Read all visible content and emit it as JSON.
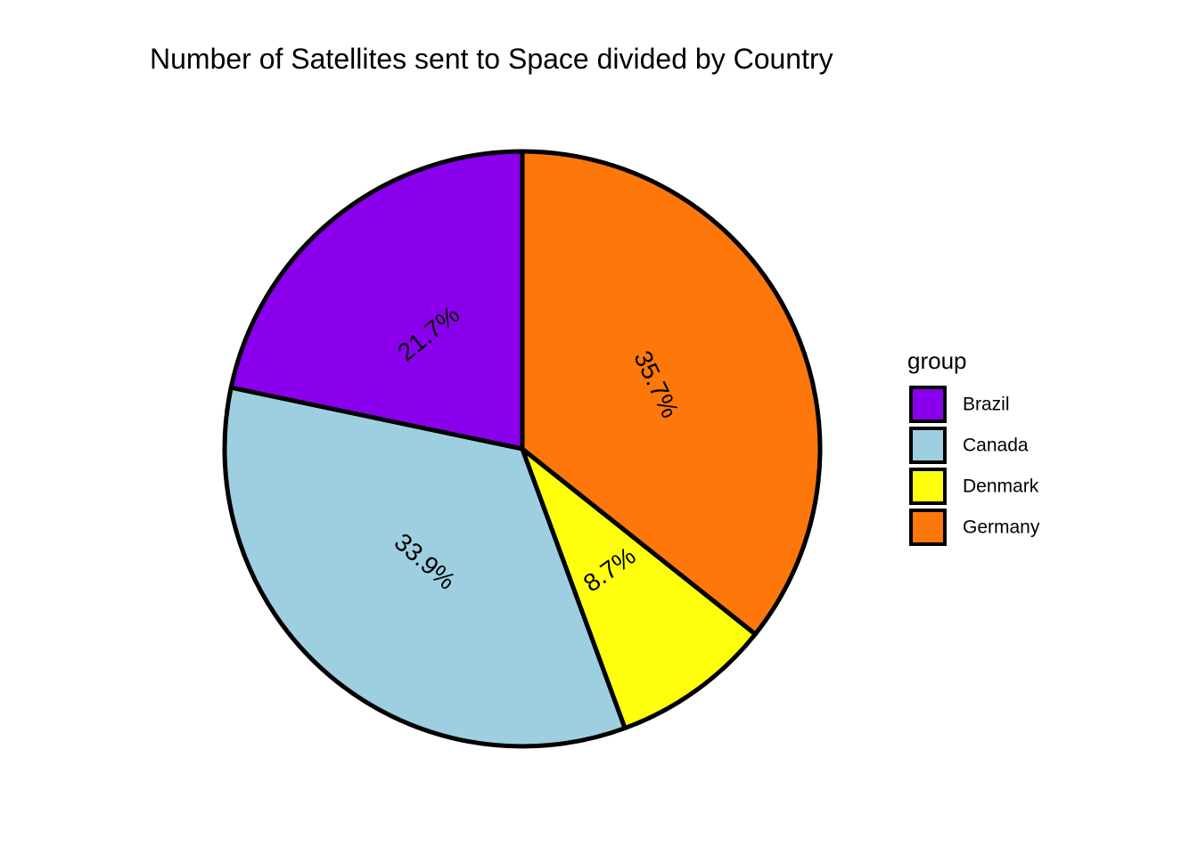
{
  "chart_data": {
    "type": "pie",
    "title": "Number of Satellites sent to Space divided by Country",
    "legend_title": "group",
    "legend_position": "right",
    "start": "12 o'clock",
    "direction": "counter-clockwise",
    "slices": [
      {
        "label": "Brazil",
        "value": 21.7,
        "display": "21.7%",
        "color": "#8a00ec"
      },
      {
        "label": "Canada",
        "value": 33.9,
        "display": "33.9%",
        "color": "#9ecfe0"
      },
      {
        "label": "Denmark",
        "value": 8.7,
        "display": "8.7%",
        "color": "#ffff0d"
      },
      {
        "label": "Germany",
        "value": 35.7,
        "display": "35.7%",
        "color": "#fd770a"
      }
    ],
    "border_color": "#000000"
  }
}
